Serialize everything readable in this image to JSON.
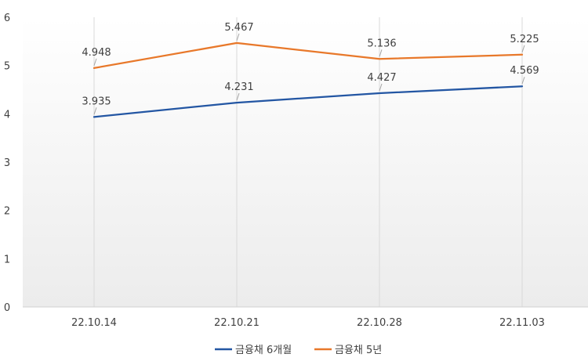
{
  "chart_data": {
    "type": "line",
    "title": "",
    "xlabel": "",
    "ylabel": "",
    "categories": [
      "22.10.14",
      "22.10.21",
      "22.10.28",
      "22.11.03"
    ],
    "ylim": [
      0,
      6
    ],
    "yticks": [
      "0",
      "1",
      "2",
      "3",
      "4",
      "5",
      "6"
    ],
    "grid": "vertical",
    "legend_position": "bottom",
    "series": [
      {
        "name": "금융채 6개월",
        "color": "#2356a3",
        "values": [
          3.935,
          4.231,
          4.427,
          4.569
        ],
        "labels": [
          "3.935",
          "4.231",
          "4.427",
          "4.569"
        ]
      },
      {
        "name": "금융채 5년",
        "color": "#e8782a",
        "values": [
          4.948,
          5.467,
          5.136,
          5.225
        ],
        "labels": [
          "4.948",
          "5.467",
          "5.136",
          "5.225"
        ]
      }
    ]
  }
}
